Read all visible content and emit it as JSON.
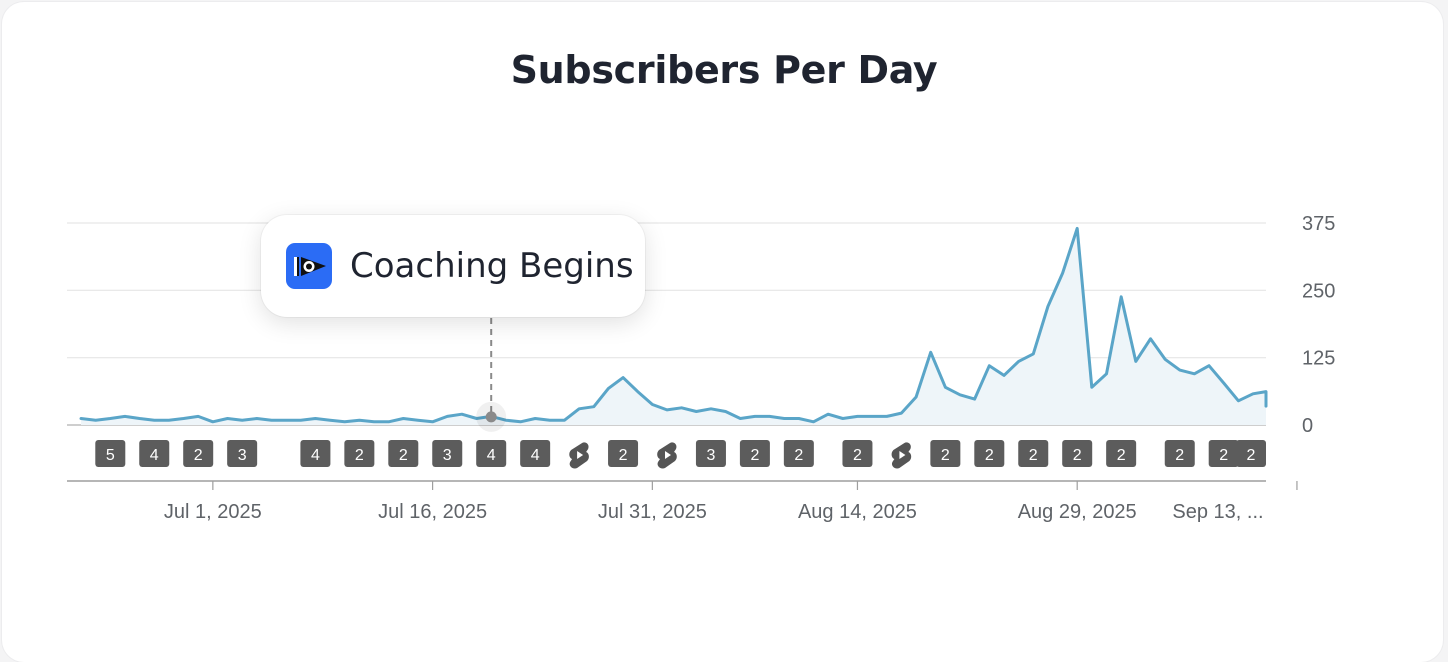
{
  "title": "Subscribers Per Day",
  "annotation": {
    "label": "Coaching Begins",
    "date": "2025-07-20",
    "value": 15,
    "icon": "coaching-logo-icon"
  },
  "colors": {
    "line": "#5aa5c8",
    "area": "#eef5f9",
    "grid": "#e6e6e6",
    "badge": "#5c5c5c",
    "accent": "#2b6cf5"
  },
  "chart_data": {
    "type": "area",
    "title": "Subscribers Per Day",
    "xlabel": "",
    "ylabel": "",
    "x_range": [
      "2025-06-22",
      "2025-09-15"
    ],
    "ylim": [
      0,
      375
    ],
    "yticks": [
      0,
      125,
      250,
      375
    ],
    "xtick_labels": [
      {
        "date": "2025-07-01",
        "label": "Jul 1, 2025"
      },
      {
        "date": "2025-07-16",
        "label": "Jul 16, 2025"
      },
      {
        "date": "2025-07-31",
        "label": "Jul 31, 2025"
      },
      {
        "date": "2025-08-14",
        "label": "Aug 14, 2025"
      },
      {
        "date": "2025-08-29",
        "label": "Aug 29, 2025"
      },
      {
        "date": "2025-09-13",
        "label": "Sep 13, ..."
      }
    ],
    "grid": true,
    "series": [
      {
        "values": [
          [
            "2025-06-22",
            12
          ],
          [
            "2025-06-23",
            9
          ],
          [
            "2025-06-24",
            12
          ],
          [
            "2025-06-25",
            16
          ],
          [
            "2025-06-26",
            12
          ],
          [
            "2025-06-27",
            9
          ],
          [
            "2025-06-28",
            9
          ],
          [
            "2025-06-29",
            12
          ],
          [
            "2025-06-30",
            16
          ],
          [
            "2025-07-01",
            6
          ],
          [
            "2025-07-02",
            12
          ],
          [
            "2025-07-03",
            9
          ],
          [
            "2025-07-04",
            12
          ],
          [
            "2025-07-05",
            9
          ],
          [
            "2025-07-06",
            9
          ],
          [
            "2025-07-07",
            9
          ],
          [
            "2025-07-08",
            12
          ],
          [
            "2025-07-09",
            9
          ],
          [
            "2025-07-10",
            6
          ],
          [
            "2025-07-11",
            9
          ],
          [
            "2025-07-12",
            6
          ],
          [
            "2025-07-13",
            6
          ],
          [
            "2025-07-14",
            12
          ],
          [
            "2025-07-15",
            9
          ],
          [
            "2025-07-16",
            6
          ],
          [
            "2025-07-17",
            16
          ],
          [
            "2025-07-18",
            20
          ],
          [
            "2025-07-19",
            12
          ],
          [
            "2025-07-20",
            16
          ],
          [
            "2025-07-21",
            9
          ],
          [
            "2025-07-22",
            6
          ],
          [
            "2025-07-23",
            12
          ],
          [
            "2025-07-24",
            9
          ],
          [
            "2025-07-25",
            9
          ],
          [
            "2025-07-26",
            30
          ],
          [
            "2025-07-27",
            34
          ],
          [
            "2025-07-28",
            68
          ],
          [
            "2025-07-29",
            88
          ],
          [
            "2025-07-30",
            62
          ],
          [
            "2025-07-31",
            38
          ],
          [
            "2025-08-01",
            28
          ],
          [
            "2025-08-02",
            32
          ],
          [
            "2025-08-03",
            25
          ],
          [
            "2025-08-04",
            30
          ],
          [
            "2025-08-05",
            25
          ],
          [
            "2025-08-06",
            12
          ],
          [
            "2025-08-07",
            16
          ],
          [
            "2025-08-08",
            16
          ],
          [
            "2025-08-09",
            12
          ],
          [
            "2025-08-10",
            12
          ],
          [
            "2025-08-11",
            6
          ],
          [
            "2025-08-12",
            20
          ],
          [
            "2025-08-13",
            12
          ],
          [
            "2025-08-14",
            16
          ],
          [
            "2025-08-15",
            16
          ],
          [
            "2025-08-16",
            16
          ],
          [
            "2025-08-17",
            22
          ],
          [
            "2025-08-18",
            52
          ],
          [
            "2025-08-19",
            135
          ],
          [
            "2025-08-20",
            70
          ],
          [
            "2025-08-21",
            56
          ],
          [
            "2025-08-22",
            48
          ],
          [
            "2025-08-23",
            110
          ],
          [
            "2025-08-24",
            92
          ],
          [
            "2025-08-25",
            118
          ],
          [
            "2025-08-26",
            132
          ],
          [
            "2025-08-27",
            220
          ],
          [
            "2025-08-28",
            282
          ],
          [
            "2025-08-29",
            365
          ],
          [
            "2025-08-30",
            70
          ],
          [
            "2025-08-31",
            95
          ],
          [
            "2025-09-01",
            238
          ],
          [
            "2025-09-02",
            118
          ],
          [
            "2025-09-03",
            160
          ],
          [
            "2025-09-04",
            122
          ],
          [
            "2025-09-05",
            102
          ],
          [
            "2025-09-06",
            95
          ],
          [
            "2025-09-07",
            110
          ],
          [
            "2025-09-08",
            78
          ],
          [
            "2025-09-09",
            45
          ],
          [
            "2025-09-10",
            58
          ],
          [
            "2025-09-11",
            62
          ],
          [
            "2025-09-12",
            35
          ]
        ]
      }
    ]
  },
  "event_markers": [
    {
      "date": "2025-06-24",
      "type": "count",
      "label": "5"
    },
    {
      "date": "2025-06-27",
      "type": "count",
      "label": "4"
    },
    {
      "date": "2025-06-30",
      "type": "count",
      "label": "2"
    },
    {
      "date": "2025-07-03",
      "type": "count",
      "label": "3"
    },
    {
      "date": "2025-07-08",
      "type": "count",
      "label": "4"
    },
    {
      "date": "2025-07-11",
      "type": "count",
      "label": "2"
    },
    {
      "date": "2025-07-14",
      "type": "count",
      "label": "2"
    },
    {
      "date": "2025-07-17",
      "type": "count",
      "label": "3"
    },
    {
      "date": "2025-07-20",
      "type": "count",
      "label": "4"
    },
    {
      "date": "2025-07-23",
      "type": "count",
      "label": "4"
    },
    {
      "date": "2025-07-26",
      "type": "shorts",
      "label": ""
    },
    {
      "date": "2025-07-29",
      "type": "count",
      "label": "2"
    },
    {
      "date": "2025-08-01",
      "type": "shorts",
      "label": ""
    },
    {
      "date": "2025-08-04",
      "type": "count",
      "label": "3"
    },
    {
      "date": "2025-08-07",
      "type": "count",
      "label": "2"
    },
    {
      "date": "2025-08-10",
      "type": "count",
      "label": "2"
    },
    {
      "date": "2025-08-14",
      "type": "count",
      "label": "2"
    },
    {
      "date": "2025-08-17",
      "type": "shorts",
      "label": ""
    },
    {
      "date": "2025-08-20",
      "type": "count",
      "label": "2"
    },
    {
      "date": "2025-08-23",
      "type": "count",
      "label": "2"
    },
    {
      "date": "2025-08-26",
      "type": "count",
      "label": "2"
    },
    {
      "date": "2025-08-29",
      "type": "count",
      "label": "2"
    },
    {
      "date": "2025-09-01",
      "type": "count",
      "label": "2"
    },
    {
      "date": "2025-09-05",
      "type": "count",
      "label": "2"
    },
    {
      "date": "2025-09-08",
      "type": "count",
      "label": "2"
    },
    {
      "date": "2025-09-11",
      "type": "count",
      "label": "2"
    }
  ]
}
